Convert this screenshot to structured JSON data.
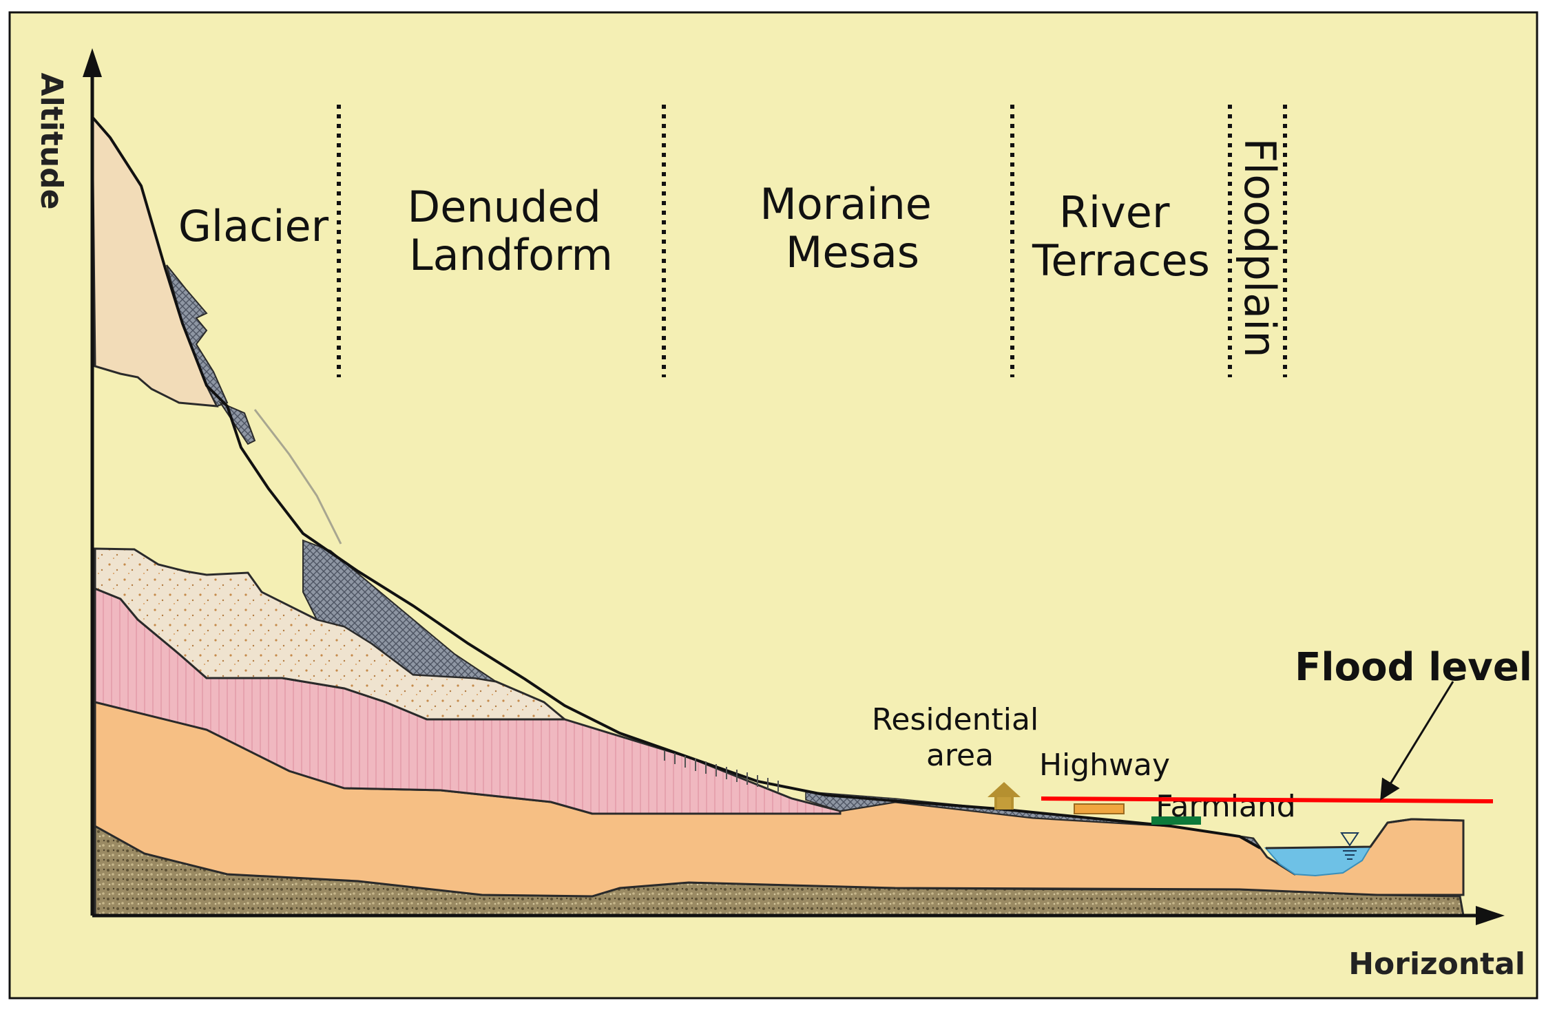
{
  "diagram": {
    "axes": {
      "y_label": "Altitude",
      "x_label": "Horizontal"
    },
    "zones": [
      {
        "id": "glacier",
        "label_lines": [
          "Glacier"
        ]
      },
      {
        "id": "denuded-landform",
        "label_lines": [
          "Denuded",
          "Landform"
        ]
      },
      {
        "id": "moraine-mesas",
        "label_lines": [
          "Moraine",
          "Mesas"
        ]
      },
      {
        "id": "river-terraces",
        "label_lines": [
          "River",
          "Terraces"
        ]
      },
      {
        "id": "floodplain",
        "label_lines": [
          "Floodplain"
        ]
      }
    ],
    "annotations": {
      "residential_area": [
        "Residential",
        "area"
      ],
      "highway": "Highway",
      "farmland": "Farmland",
      "flood_level": "Flood level"
    },
    "colors": {
      "background": "#f4efb4",
      "glacier_ice": "#f2dcb8",
      "moraine_deposit": "#efe3cf",
      "pink_layer": "#f0b8c0",
      "orange_sediment": "#f6bf84",
      "bedrock": "#9a8a63",
      "gray_debris": "#8e96a3",
      "water": "#6ec1e6",
      "flood_line": "#ff0000",
      "residential": "#b59030",
      "highway": "#f0a640",
      "farmland": "#0c7a3a"
    }
  }
}
